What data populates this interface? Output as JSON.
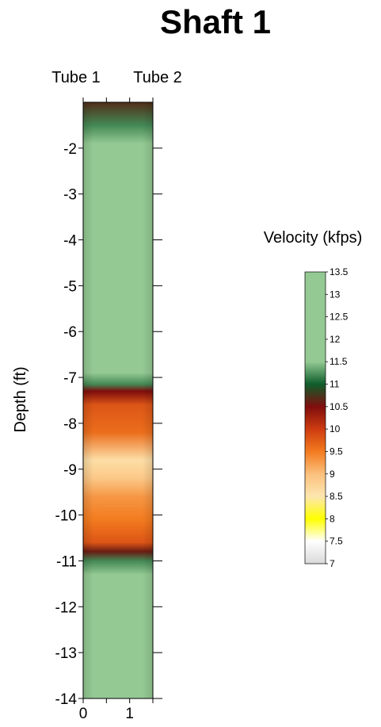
{
  "chart_data": {
    "type": "heatmap",
    "title": "Shaft 1",
    "ylabel": "Depth (ft)",
    "top_labels": [
      "Tube 1",
      "Tube 2"
    ],
    "x_ticks": [
      0,
      0.5,
      1,
      1.5
    ],
    "x_tick_labels": [
      "0",
      "1"
    ],
    "x_tick_label_values": [
      0,
      1
    ],
    "xlim": [
      0,
      1.5
    ],
    "ylim": [
      -14,
      -1
    ],
    "y_ticks": [
      -2,
      -3,
      -4,
      -5,
      -6,
      -7,
      -8,
      -9,
      -10,
      -11,
      -12,
      -13,
      -14
    ],
    "y_tick_labels": [
      "-2",
      "-3",
      "-4",
      "-5",
      "-6",
      "-7",
      "-8",
      "-9",
      "-10",
      "-11",
      "-12",
      "-13",
      "-14"
    ],
    "colorbar": {
      "title": "Velocity (kfps)",
      "min": 7,
      "max": 13.5,
      "ticks": [
        "13.5",
        "13",
        "12.5",
        "12",
        "11.5",
        "11",
        "10.5",
        "10",
        "9.5",
        "9",
        "8.5",
        "8",
        "7.5",
        "7"
      ],
      "stops": [
        {
          "v": 7.0,
          "c": "#d9d9d9"
        },
        {
          "v": 7.5,
          "c": "#ffffff"
        },
        {
          "v": 8.0,
          "c": "#ffff00"
        },
        {
          "v": 8.5,
          "c": "#fde6b0"
        },
        {
          "v": 9.0,
          "c": "#fbc07d"
        },
        {
          "v": 9.5,
          "c": "#f37b1f"
        },
        {
          "v": 10.0,
          "c": "#cd3b10"
        },
        {
          "v": 10.5,
          "c": "#7f0d0d"
        },
        {
          "v": 11.0,
          "c": "#0f5e2c"
        },
        {
          "v": 11.5,
          "c": "#94c993"
        },
        {
          "v": 13.5,
          "c": "#94c993"
        }
      ]
    },
    "profile": {
      "description_units": "depth ft, velocity kfps",
      "depth": [
        -1.0,
        -1.5,
        -1.9,
        -2.2,
        -6.9,
        -7.15,
        -7.3,
        -7.6,
        -8.2,
        -8.8,
        -9.2,
        -9.6,
        -10.1,
        -10.6,
        -10.8,
        -11.0,
        -11.3,
        -14.0
      ],
      "velocity": [
        10.7,
        11.2,
        11.6,
        12.2,
        12.2,
        11.2,
        10.5,
        9.8,
        9.6,
        8.6,
        8.9,
        9.3,
        9.5,
        9.8,
        10.6,
        11.2,
        12.2,
        12.2
      ]
    }
  }
}
